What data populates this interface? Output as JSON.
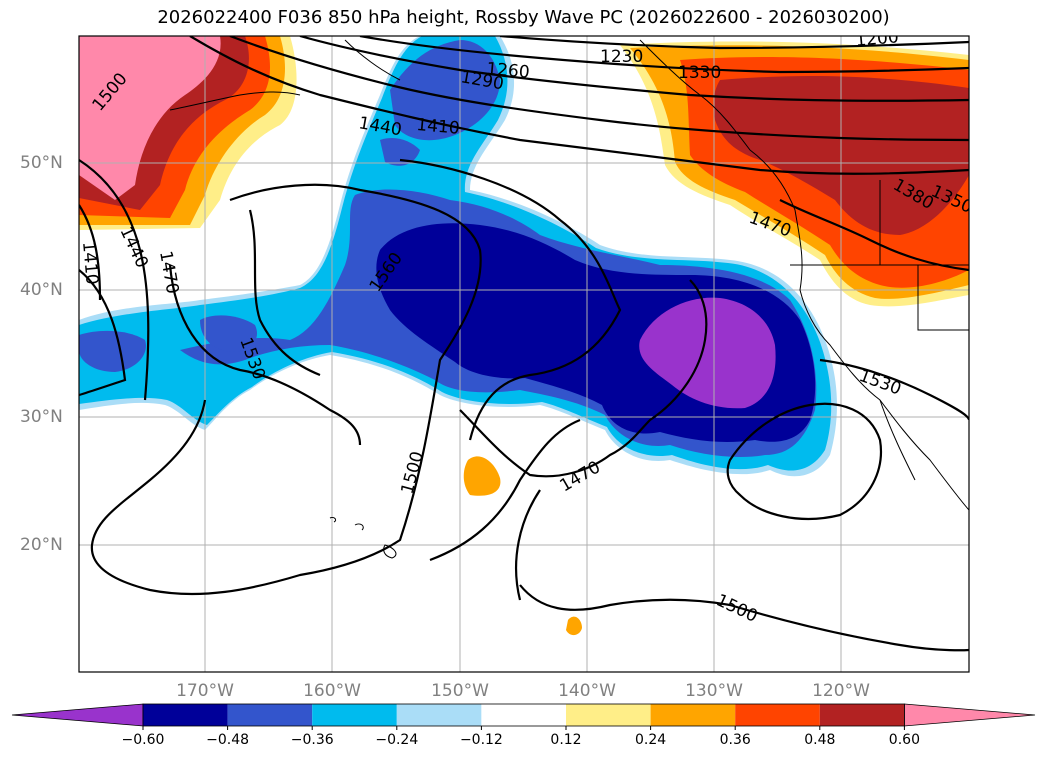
{
  "title": "2026022400 F036 850 hPa height, Rossby Wave PC (2026022600 - 2026030200)",
  "map": {
    "lat_labels": [
      "50°N",
      "40°N",
      "30°N",
      "20°N"
    ],
    "lon_labels": [
      "170°W",
      "160°W",
      "150°W",
      "140°W",
      "130°W",
      "120°W"
    ],
    "grid": true
  },
  "height_contour_labels": [
    "1500",
    "1440",
    "1410",
    "1470",
    "1530",
    "1560",
    "1500",
    "1470",
    "1500",
    "1530",
    "1440",
    "1410",
    "1290",
    "1260",
    "1230",
    "1200",
    "1380",
    "1350",
    "1330",
    "1470"
  ],
  "colorbar": {
    "ticks": [
      "−0.60",
      "−0.48",
      "−0.36",
      "−0.24",
      "−0.12",
      "0.12",
      "0.24",
      "0.36",
      "0.48",
      "0.60"
    ],
    "colors": [
      "#9933CC",
      "#000099",
      "#3355CC",
      "#00BBEE",
      "#AADDF7",
      "#FFFFFF",
      "#FFEE88",
      "#FFA500",
      "#FF4400",
      "#B22222",
      "#FF88AA"
    ]
  }
}
